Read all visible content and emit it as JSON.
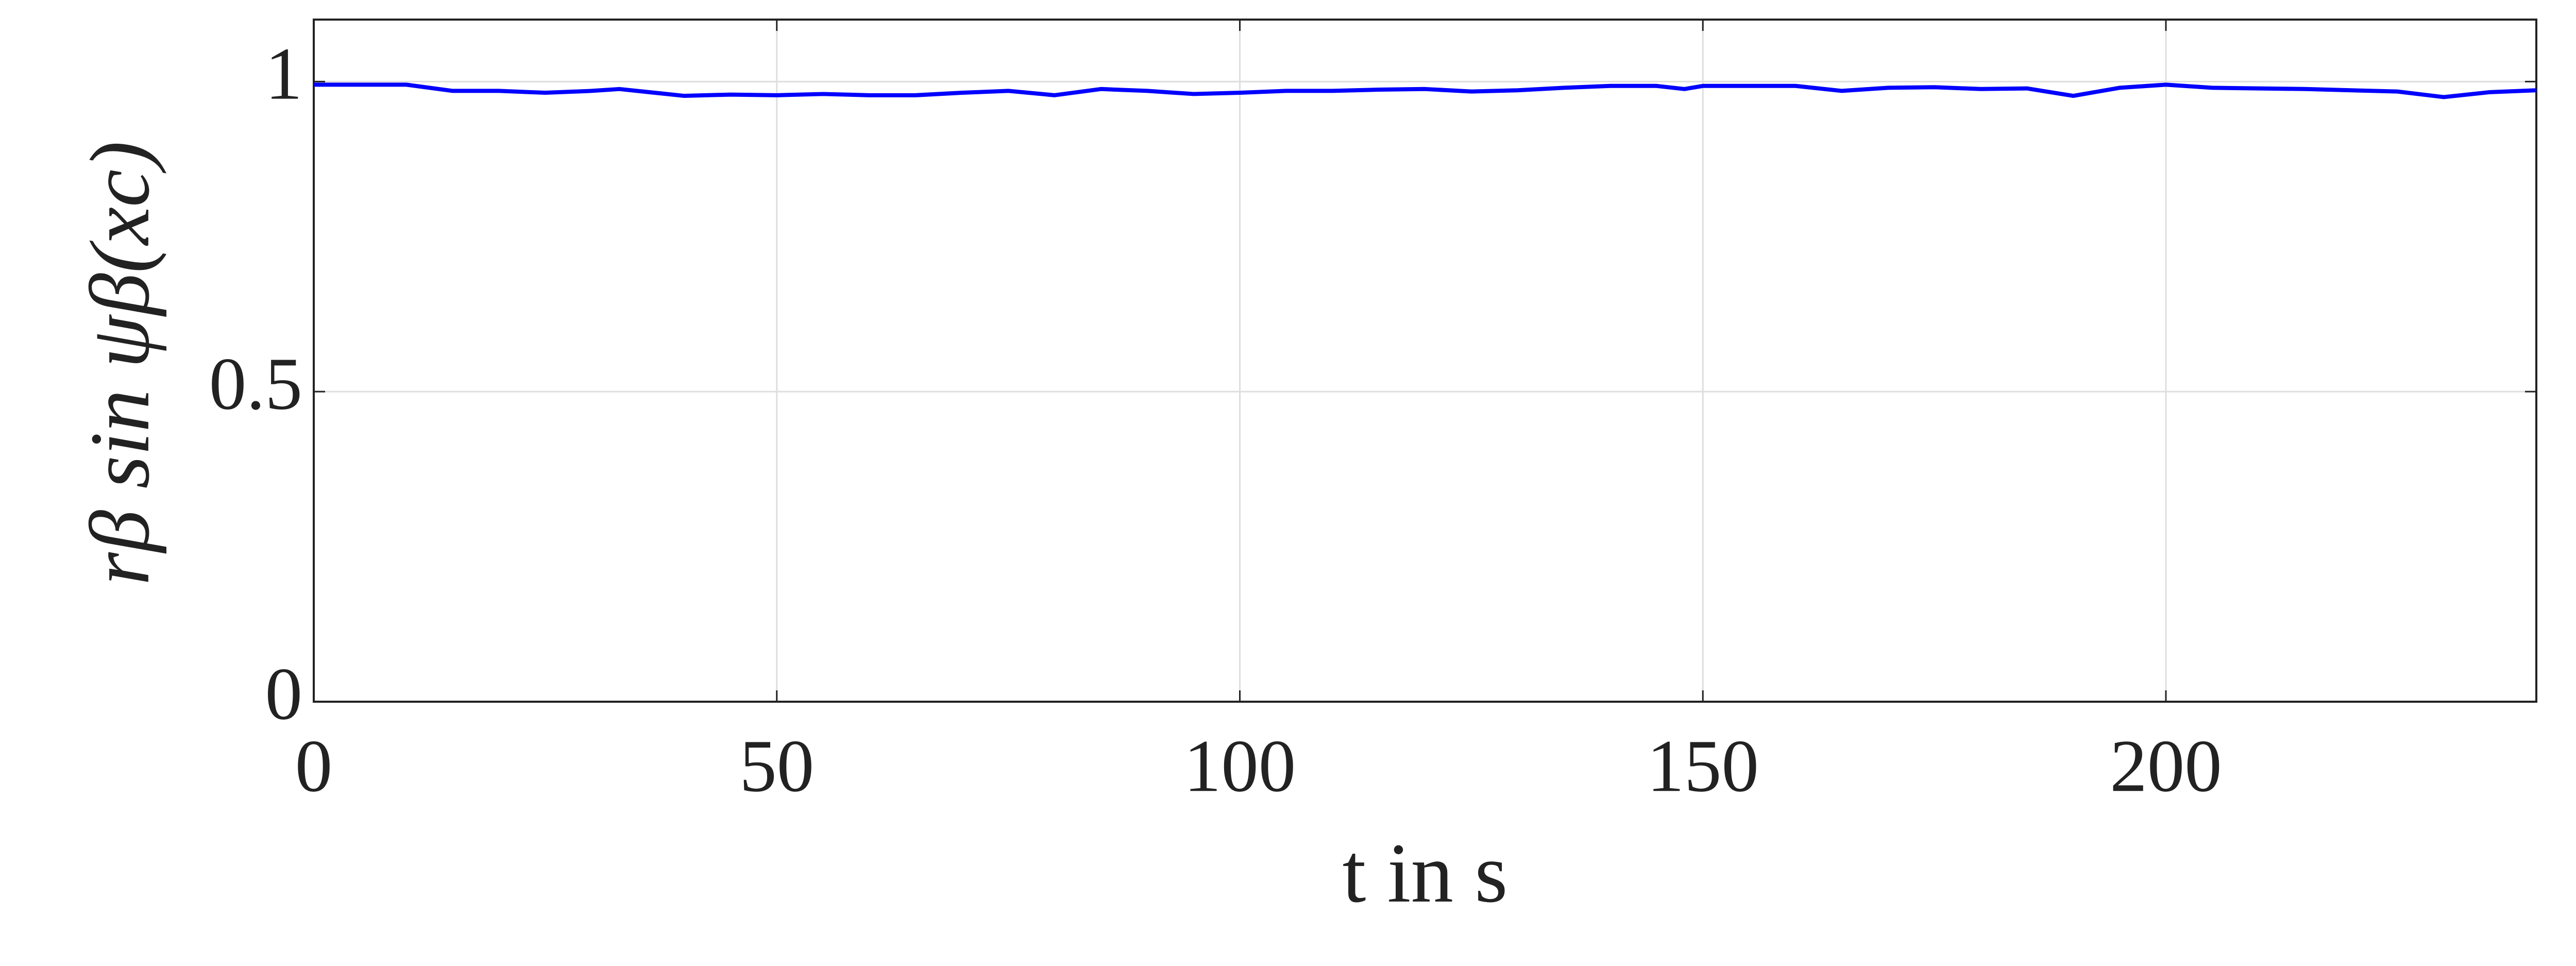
{
  "chart_data": {
    "type": "line",
    "xlabel": "t in s",
    "ylabel": "rβ sin ψβ(xc)",
    "x": [
      0,
      5,
      10,
      15,
      20,
      25,
      30,
      33,
      40,
      45,
      50,
      55,
      60,
      65,
      70,
      75,
      80,
      85,
      90,
      95,
      100,
      105,
      110,
      115,
      120,
      125,
      130,
      135,
      140,
      145,
      148,
      150,
      155,
      160,
      165,
      170,
      175,
      180,
      185,
      190,
      195,
      200,
      205,
      210,
      215,
      220,
      225,
      230,
      235,
      240
    ],
    "series": [
      {
        "color": "#0000ff",
        "values": [
          0.995,
          0.995,
          0.995,
          0.985,
          0.985,
          0.982,
          0.985,
          0.988,
          0.977,
          0.979,
          0.978,
          0.98,
          0.978,
          0.978,
          0.982,
          0.985,
          0.978,
          0.988,
          0.985,
          0.98,
          0.982,
          0.985,
          0.985,
          0.987,
          0.988,
          0.984,
          0.986,
          0.99,
          0.993,
          0.993,
          0.988,
          0.993,
          0.993,
          0.993,
          0.985,
          0.99,
          0.991,
          0.988,
          0.989,
          0.977,
          0.99,
          0.995,
          0.99,
          0.989,
          0.988,
          0.986,
          0.984,
          0.975,
          0.983,
          0.986
        ]
      }
    ],
    "xlim": [
      0,
      240
    ],
    "xticks": [
      0,
      50,
      100,
      150,
      200
    ],
    "ylim": [
      0,
      1.1
    ],
    "yticks": [
      0,
      0.5,
      1
    ],
    "grid": true
  }
}
